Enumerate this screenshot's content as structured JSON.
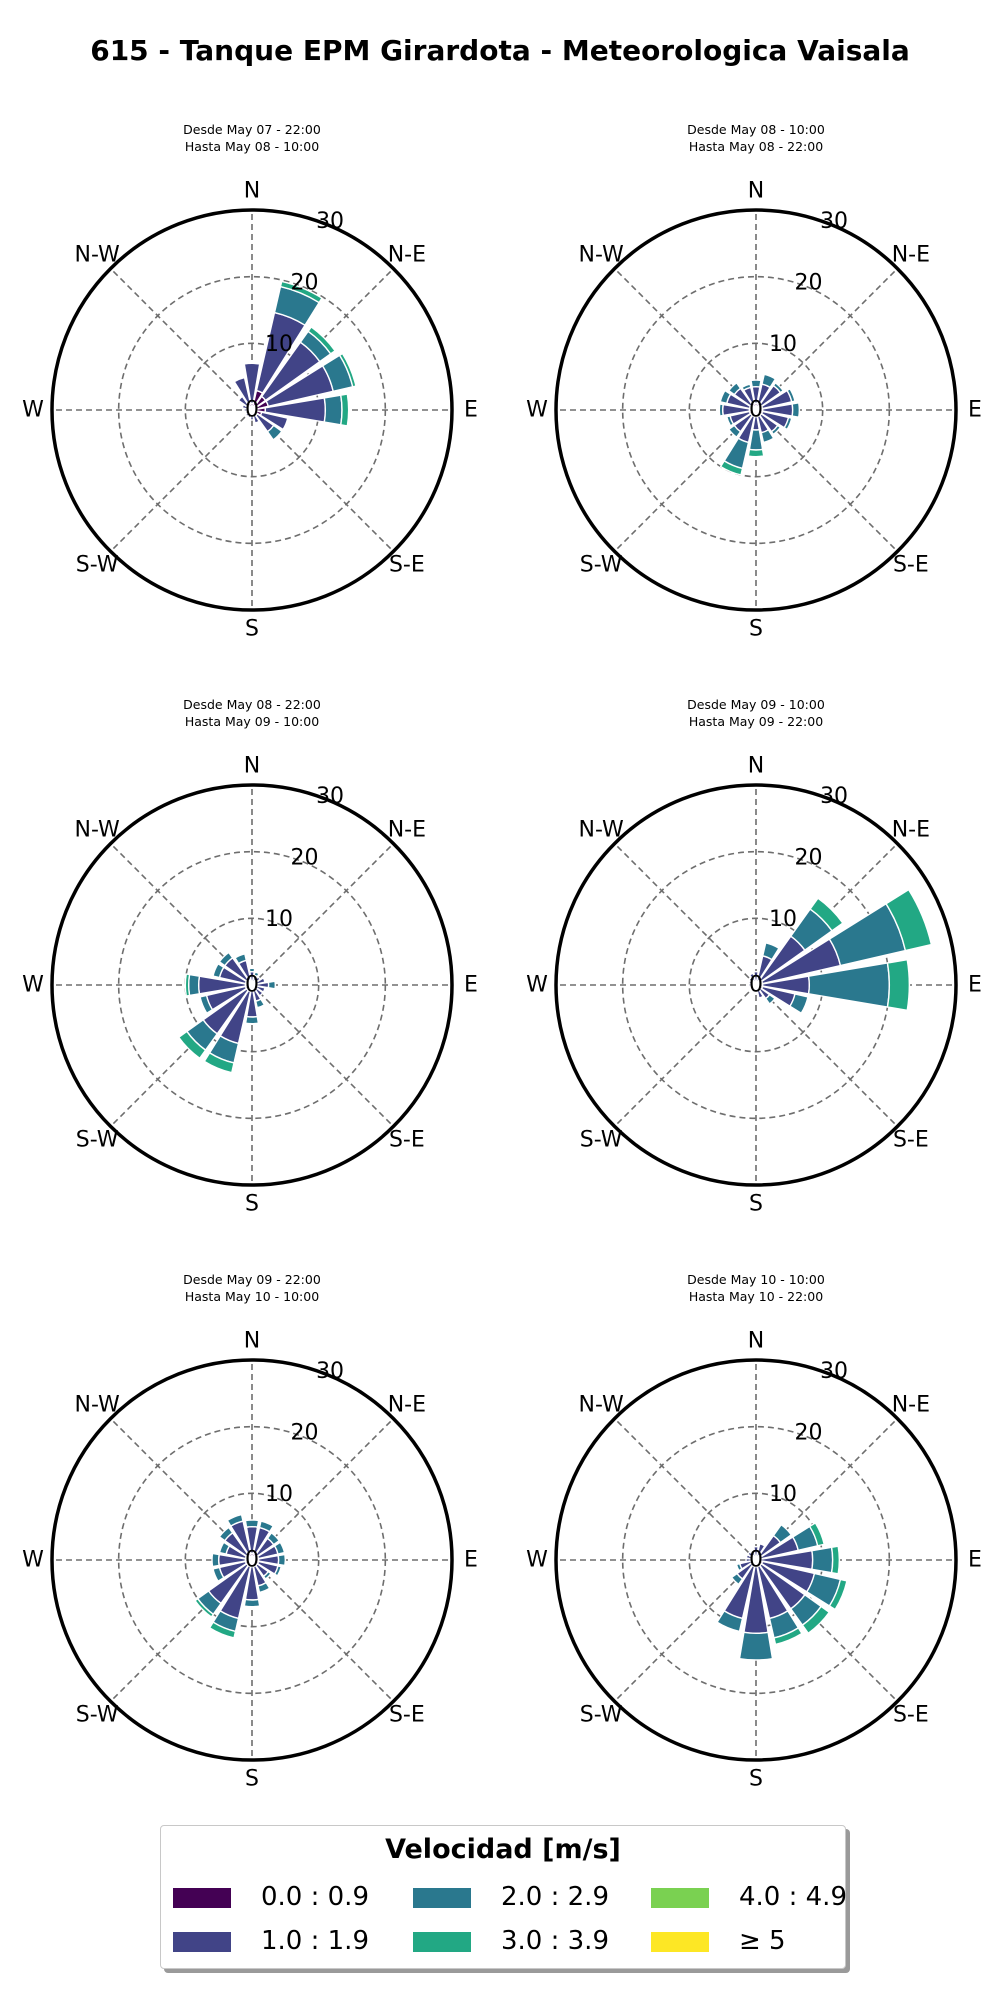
{
  "title": "615 - Tanque EPM Girardota - Meteorologica Vaisala",
  "colors": {
    "bins": [
      "#440154",
      "#414487",
      "#2a788e",
      "#22a884",
      "#7ad151",
      "#fde725"
    ],
    "grid": "#6e6e6e",
    "frame": "#000000"
  },
  "chart_data": [
    {
      "type": "windrose",
      "subtitle": [
        "Desde May 07 - 22:00",
        "Hasta May 08 - 10:00"
      ],
      "directions": [
        "N",
        "N-E",
        "E",
        "S-E",
        "S",
        "S-W",
        "W",
        "N-W"
      ],
      "radial_ticks": [
        "0",
        "10",
        "20",
        "30"
      ],
      "rmax": 30,
      "sectors": [
        {
          "angle": 22.5,
          "stack": [
            3,
            12,
            4,
            0.8
          ]
        },
        {
          "angle": 45,
          "stack": [
            2.5,
            10,
            2,
            0.8
          ]
        },
        {
          "angle": 67.5,
          "stack": [
            2.5,
            10,
            3,
            0.5
          ]
        },
        {
          "angle": 90,
          "stack": [
            2,
            9,
            2.5,
            1
          ]
        },
        {
          "angle": 112.5,
          "stack": [
            1.5,
            4
          ]
        },
        {
          "angle": 135,
          "stack": [
            1,
            3,
            1.5
          ]
        },
        {
          "angle": 157.5,
          "stack": [
            0.5,
            1.5
          ]
        },
        {
          "angle": 180,
          "stack": [
            0.5,
            1
          ]
        },
        {
          "angle": 202.5,
          "stack": [
            0.4,
            0.8
          ]
        },
        {
          "angle": 225,
          "stack": [
            0.4,
            0.8
          ]
        },
        {
          "angle": 247.5,
          "stack": [
            0.4,
            0.6
          ]
        },
        {
          "angle": 270,
          "stack": [
            0.4,
            0.8
          ]
        },
        {
          "angle": 292.5,
          "stack": [
            0.5,
            1
          ]
        },
        {
          "angle": 315,
          "stack": [
            0.5,
            2
          ]
        },
        {
          "angle": 337.5,
          "stack": [
            1,
            4
          ]
        },
        {
          "angle": 0,
          "stack": [
            1,
            6
          ]
        }
      ]
    },
    {
      "type": "windrose",
      "subtitle": [
        "Desde May 08 - 10:00",
        "Hasta May 08 - 22:00"
      ],
      "directions": [
        "N",
        "N-E",
        "E",
        "S-E",
        "S",
        "S-W",
        "W",
        "N-W"
      ],
      "radial_ticks": [
        "0",
        "10",
        "20",
        "30"
      ],
      "rmax": 30,
      "sectors": [
        {
          "angle": 0,
          "stack": [
            1,
            2.5,
            1
          ]
        },
        {
          "angle": 22.5,
          "stack": [
            1,
            3,
            1.5
          ]
        },
        {
          "angle": 45,
          "stack": [
            1,
            3.5,
            0.5
          ]
        },
        {
          "angle": 67.5,
          "stack": [
            1,
            4.5,
            0.5
          ]
        },
        {
          "angle": 90,
          "stack": [
            1,
            4.5,
            1
          ]
        },
        {
          "angle": 112.5,
          "stack": [
            1,
            4,
            0.5
          ]
        },
        {
          "angle": 135,
          "stack": [
            1,
            3,
            0.5
          ]
        },
        {
          "angle": 157.5,
          "stack": [
            1,
            2.5,
            1.5
          ]
        },
        {
          "angle": 180,
          "stack": [
            1,
            2,
            3,
            1
          ]
        },
        {
          "angle": 202.5,
          "stack": [
            1,
            4,
            4,
            1
          ]
        },
        {
          "angle": 225,
          "stack": [
            1,
            3,
            1
          ]
        },
        {
          "angle": 247.5,
          "stack": [
            1,
            3,
            0.5
          ]
        },
        {
          "angle": 270,
          "stack": [
            1,
            4,
            0.5
          ]
        },
        {
          "angle": 292.5,
          "stack": [
            1,
            3.5,
            1
          ]
        },
        {
          "angle": 315,
          "stack": [
            1,
            3,
            1
          ]
        },
        {
          "angle": 337.5,
          "stack": [
            1,
            2.5,
            0.5
          ]
        }
      ]
    },
    {
      "type": "windrose",
      "subtitle": [
        "Desde May 08 - 22:00",
        "Hasta May 09 - 10:00"
      ],
      "directions": [
        "N",
        "N-E",
        "E",
        "S-E",
        "S",
        "S-W",
        "W",
        "N-W"
      ],
      "radial_ticks": [
        "0",
        "10",
        "20",
        "30"
      ],
      "rmax": 30,
      "sectors": [
        {
          "angle": 0,
          "stack": [
            0.5,
            1.5,
            0.5
          ]
        },
        {
          "angle": 22.5,
          "stack": [
            0.5,
            1,
            0.5
          ]
        },
        {
          "angle": 45,
          "stack": [
            0.5,
            1
          ]
        },
        {
          "angle": 67.5,
          "stack": [
            0.5,
            1.5
          ]
        },
        {
          "angle": 90,
          "stack": [
            0.5,
            2,
            1
          ]
        },
        {
          "angle": 112.5,
          "stack": [
            0.5,
            1.5
          ]
        },
        {
          "angle": 135,
          "stack": [
            0.5,
            1.5
          ]
        },
        {
          "angle": 157.5,
          "stack": [
            0.5,
            2,
            1
          ]
        },
        {
          "angle": 180,
          "stack": [
            0.8,
            4,
            1
          ]
        },
        {
          "angle": 202.5,
          "stack": [
            1,
            8,
            3,
            1.5
          ]
        },
        {
          "angle": 225,
          "stack": [
            1,
            8,
            3,
            1.5
          ]
        },
        {
          "angle": 247.5,
          "stack": [
            1,
            6,
            1
          ]
        },
        {
          "angle": 270,
          "stack": [
            1,
            7,
            1.5,
            0.5
          ]
        },
        {
          "angle": 292.5,
          "stack": [
            1,
            4,
            1
          ]
        },
        {
          "angle": 315,
          "stack": [
            1,
            4,
            1
          ]
        },
        {
          "angle": 337.5,
          "stack": [
            0.8,
            3,
            1
          ]
        }
      ]
    },
    {
      "type": "windrose",
      "subtitle": [
        "Desde May 09 - 10:00",
        "Hasta May 09 - 22:00"
      ],
      "directions": [
        "N",
        "N-E",
        "E",
        "S-E",
        "S",
        "S-W",
        "W",
        "N-W"
      ],
      "radial_ticks": [
        "0",
        "10",
        "20",
        "30"
      ],
      "rmax": 30,
      "sectors": [
        {
          "angle": 0,
          "stack": [
            0.5,
            1.5
          ]
        },
        {
          "angle": 22.5,
          "stack": [
            0.5,
            4,
            2
          ]
        },
        {
          "angle": 45,
          "stack": [
            1,
            8,
            5,
            2
          ]
        },
        {
          "angle": 67.5,
          "stack": [
            1,
            12,
            10,
            4
          ]
        },
        {
          "angle": 90,
          "stack": [
            1,
            7,
            12,
            3
          ]
        },
        {
          "angle": 112.5,
          "stack": [
            1,
            5,
            2
          ]
        },
        {
          "angle": 135,
          "stack": [
            0.5,
            2,
            1
          ]
        },
        {
          "angle": 157.5,
          "stack": [
            0.5,
            1.5
          ]
        },
        {
          "angle": 180,
          "stack": [
            0.3,
            0.8
          ]
        },
        {
          "angle": 202.5,
          "stack": [
            0.3,
            0.8
          ]
        },
        {
          "angle": 225,
          "stack": [
            0.3,
            0.6
          ]
        },
        {
          "angle": 247.5,
          "stack": [
            0.3,
            0.6
          ]
        },
        {
          "angle": 270,
          "stack": [
            0.3,
            0.8
          ]
        },
        {
          "angle": 292.5,
          "stack": [
            0.3,
            0.8
          ]
        },
        {
          "angle": 315,
          "stack": [
            0.3,
            1
          ]
        },
        {
          "angle": 337.5,
          "stack": [
            0.3,
            1.5
          ]
        }
      ]
    },
    {
      "type": "windrose",
      "subtitle": [
        "Desde May 09 - 22:00",
        "Hasta May 10 - 10:00"
      ],
      "directions": [
        "N",
        "N-E",
        "E",
        "S-E",
        "S",
        "S-W",
        "W",
        "N-W"
      ],
      "radial_ticks": [
        "0",
        "10",
        "20",
        "30"
      ],
      "rmax": 30,
      "sectors": [
        {
          "angle": 0,
          "stack": [
            1,
            4,
            1
          ]
        },
        {
          "angle": 22.5,
          "stack": [
            1,
            4,
            1
          ]
        },
        {
          "angle": 45,
          "stack": [
            1,
            3,
            1
          ]
        },
        {
          "angle": 67.5,
          "stack": [
            1,
            3,
            1
          ]
        },
        {
          "angle": 90,
          "stack": [
            1,
            3,
            1
          ]
        },
        {
          "angle": 112.5,
          "stack": [
            1,
            3,
            0.5
          ]
        },
        {
          "angle": 135,
          "stack": [
            1,
            2,
            0.5
          ]
        },
        {
          "angle": 157.5,
          "stack": [
            1,
            3,
            1
          ]
        },
        {
          "angle": 180,
          "stack": [
            1,
            5,
            1
          ]
        },
        {
          "angle": 202.5,
          "stack": [
            1,
            8,
            2,
            1
          ]
        },
        {
          "angle": 225,
          "stack": [
            1,
            7,
            2,
            0.5
          ]
        },
        {
          "angle": 247.5,
          "stack": [
            1,
            4,
            1
          ]
        },
        {
          "angle": 270,
          "stack": [
            1,
            4,
            1
          ]
        },
        {
          "angle": 292.5,
          "stack": [
            1,
            3,
            1
          ]
        },
        {
          "angle": 315,
          "stack": [
            1,
            4,
            1
          ]
        },
        {
          "angle": 337.5,
          "stack": [
            1,
            5,
            1
          ]
        }
      ]
    },
    {
      "type": "windrose",
      "subtitle": [
        "Desde May 10 - 10:00",
        "Hasta May 10 - 22:00"
      ],
      "directions": [
        "N",
        "N-E",
        "E",
        "S-E",
        "S",
        "S-W",
        "W",
        "N-W"
      ],
      "radial_ticks": [
        "0",
        "10",
        "20",
        "30"
      ],
      "rmax": 30,
      "sectors": [
        {
          "angle": 0,
          "stack": [
            0.5,
            1.5
          ]
        },
        {
          "angle": 22.5,
          "stack": [
            0.5,
            2
          ]
        },
        {
          "angle": 45,
          "stack": [
            0.5,
            4,
            2
          ]
        },
        {
          "angle": 67.5,
          "stack": [
            0.5,
            6,
            3,
            1
          ]
        },
        {
          "angle": 90,
          "stack": [
            0.5,
            8,
            3,
            1
          ]
        },
        {
          "angle": 112.5,
          "stack": [
            1,
            8,
            4,
            1
          ]
        },
        {
          "angle": 135,
          "stack": [
            1,
            8,
            3,
            1.5
          ]
        },
        {
          "angle": 157.5,
          "stack": [
            1,
            8,
            3,
            1
          ]
        },
        {
          "angle": 180,
          "stack": [
            1,
            10,
            4
          ]
        },
        {
          "angle": 202.5,
          "stack": [
            1,
            8,
            2
          ]
        },
        {
          "angle": 225,
          "stack": [
            0.5,
            3,
            1
          ]
        },
        {
          "angle": 247.5,
          "stack": [
            0.5,
            2,
            0.5
          ]
        },
        {
          "angle": 270,
          "stack": [
            0.5,
            1
          ]
        },
        {
          "angle": 292.5,
          "stack": [
            0.5,
            1
          ]
        },
        {
          "angle": 315,
          "stack": [
            0.5,
            1
          ]
        },
        {
          "angle": 337.5,
          "stack": [
            0.5,
            1
          ]
        }
      ]
    }
  ],
  "legend": {
    "title": "Velocidad [m/s]",
    "entries": [
      {
        "label": "0.0 : 0.9",
        "color": "#440154"
      },
      {
        "label": "1.0 : 1.9",
        "color": "#414487"
      },
      {
        "label": "2.0 : 2.9",
        "color": "#2a788e"
      },
      {
        "label": "3.0 : 3.9",
        "color": "#22a884"
      },
      {
        "label": "4.0 : 4.9",
        "color": "#7ad151"
      },
      {
        "label": "≥  5",
        "color": "#fde725"
      }
    ]
  }
}
